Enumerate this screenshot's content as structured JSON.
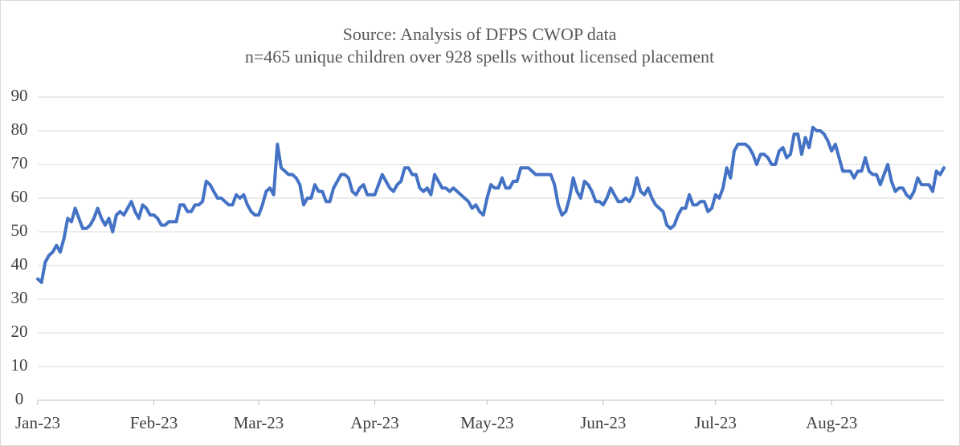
{
  "chart_data": {
    "type": "line",
    "title": "Source: Analysis of DFPS CWOP data",
    "subtitle": "n=465 unique children over 928 spells without licensed placement",
    "categories": [
      "Jan-23",
      null,
      null,
      null,
      null,
      null,
      null,
      null,
      null,
      null,
      null,
      null,
      null,
      null,
      null,
      null,
      null,
      null,
      null,
      null,
      null,
      null,
      null,
      null,
      null,
      null,
      null,
      null,
      null,
      null,
      null,
      "Feb-23",
      null,
      null,
      null,
      null,
      null,
      null,
      null,
      null,
      null,
      null,
      null,
      null,
      null,
      null,
      null,
      null,
      null,
      null,
      null,
      null,
      null,
      null,
      null,
      null,
      null,
      null,
      null,
      "Mar-23",
      null,
      null,
      null,
      null,
      null,
      null,
      null,
      null,
      null,
      null,
      null,
      null,
      null,
      null,
      null,
      null,
      null,
      null,
      null,
      null,
      null,
      null,
      null,
      null,
      null,
      null,
      null,
      null,
      null,
      null,
      "Apr-23",
      null,
      null,
      null,
      null,
      null,
      null,
      null,
      null,
      null,
      null,
      null,
      null,
      null,
      null,
      null,
      null,
      null,
      null,
      null,
      null,
      null,
      null,
      null,
      null,
      null,
      null,
      null,
      null,
      null,
      "May-23",
      null,
      null,
      null,
      null,
      null,
      null,
      null,
      null,
      null,
      null,
      null,
      null,
      null,
      null,
      null,
      null,
      null,
      null,
      null,
      null,
      null,
      null,
      null,
      null,
      null,
      null,
      null,
      null,
      null,
      null,
      "Jun-23",
      null,
      null,
      null,
      null,
      null,
      null,
      null,
      null,
      null,
      null,
      null,
      null,
      null,
      null,
      null,
      null,
      null,
      null,
      null,
      null,
      null,
      null,
      null,
      null,
      null,
      null,
      null,
      null,
      null,
      "Jul-23",
      null,
      null,
      null,
      null,
      null,
      null,
      null,
      null,
      null,
      null,
      null,
      null,
      null,
      null,
      null,
      null,
      null,
      null,
      null,
      null,
      null,
      null,
      null,
      null,
      null,
      null,
      null,
      null,
      null,
      null,
      "Aug-23",
      null,
      null,
      null,
      null,
      null,
      null,
      null,
      null,
      null,
      null,
      null,
      null,
      null,
      null,
      null,
      null,
      null,
      null,
      null,
      null,
      null,
      null,
      null,
      null,
      null,
      null,
      null,
      null,
      null,
      null
    ],
    "values": [
      36,
      35,
      41,
      43,
      44,
      46,
      44,
      48,
      54,
      53,
      57,
      54,
      51,
      51,
      52,
      54,
      57,
      54,
      52,
      54,
      50,
      55,
      56,
      55,
      57,
      59,
      56,
      54,
      58,
      57,
      55,
      55,
      54,
      52,
      52,
      53,
      53,
      53,
      58,
      58,
      56,
      56,
      58,
      58,
      59,
      65,
      64,
      62,
      60,
      60,
      59,
      58,
      58,
      61,
      60,
      61,
      58,
      56,
      55,
      55,
      58,
      62,
      63,
      61,
      76,
      69,
      68,
      67,
      67,
      66,
      64,
      58,
      60,
      60,
      64,
      62,
      62,
      59,
      59,
      63,
      65,
      67,
      67,
      66,
      62,
      61,
      63,
      64,
      61,
      61,
      61,
      64,
      67,
      65,
      63,
      62,
      64,
      65,
      69,
      69,
      67,
      67,
      63,
      62,
      63,
      61,
      67,
      65,
      63,
      63,
      62,
      63,
      62,
      61,
      60,
      59,
      57,
      58,
      56,
      55,
      60,
      64,
      63,
      63,
      66,
      63,
      63,
      65,
      65,
      69,
      69,
      69,
      68,
      67,
      67,
      67,
      67,
      67,
      64,
      58,
      55,
      56,
      60,
      66,
      62,
      60,
      65,
      64,
      62,
      59,
      59,
      58,
      60,
      63,
      61,
      59,
      59,
      60,
      59,
      61,
      66,
      62,
      61,
      63,
      60,
      58,
      57,
      56,
      52,
      51,
      52,
      55,
      57,
      57,
      61,
      58,
      58,
      59,
      59,
      56,
      57,
      61,
      60,
      63,
      69,
      66,
      74,
      76,
      76,
      76,
      75,
      73,
      70,
      73,
      73,
      72,
      70,
      70,
      74,
      75,
      72,
      73,
      79,
      79,
      73,
      78,
      75,
      81,
      80,
      80,
      79,
      77,
      74,
      76,
      72,
      68,
      68,
      68,
      66,
      68,
      68,
      72,
      68,
      67,
      67,
      64,
      67,
      70,
      65,
      62,
      63,
      63,
      61,
      60,
      62,
      66,
      64,
      64,
      64,
      62,
      68,
      67,
      69
    ],
    "color": "#4472c4",
    "ylim": [
      0,
      90
    ],
    "yticks": [
      0,
      10,
      20,
      30,
      40,
      50,
      60,
      70,
      80,
      90
    ],
    "grid": true
  }
}
